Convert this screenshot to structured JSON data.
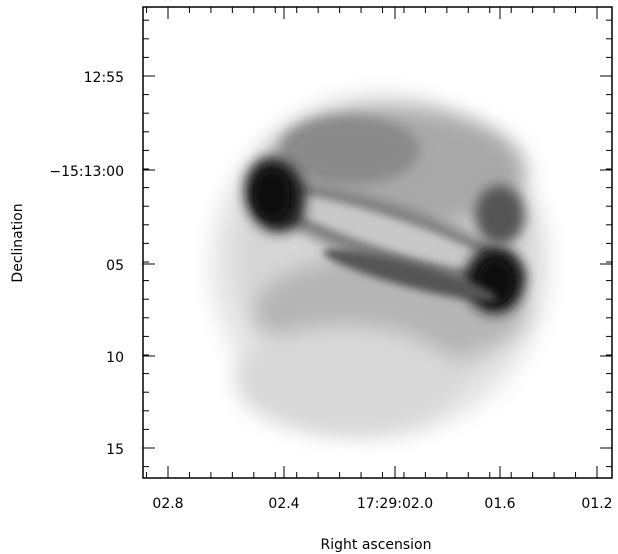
{
  "figure": {
    "image_description_icon": "nebula-grayscale-icon",
    "x_axis": {
      "label": "Right ascension",
      "ticks": [
        "02.8",
        "02.4",
        "17:29:02.0",
        "01.6",
        "01.2"
      ]
    },
    "y_axis": {
      "label": "Declination",
      "ticks": [
        "12:55",
        "−15:13:00",
        "05",
        "10",
        "15"
      ]
    }
  }
}
